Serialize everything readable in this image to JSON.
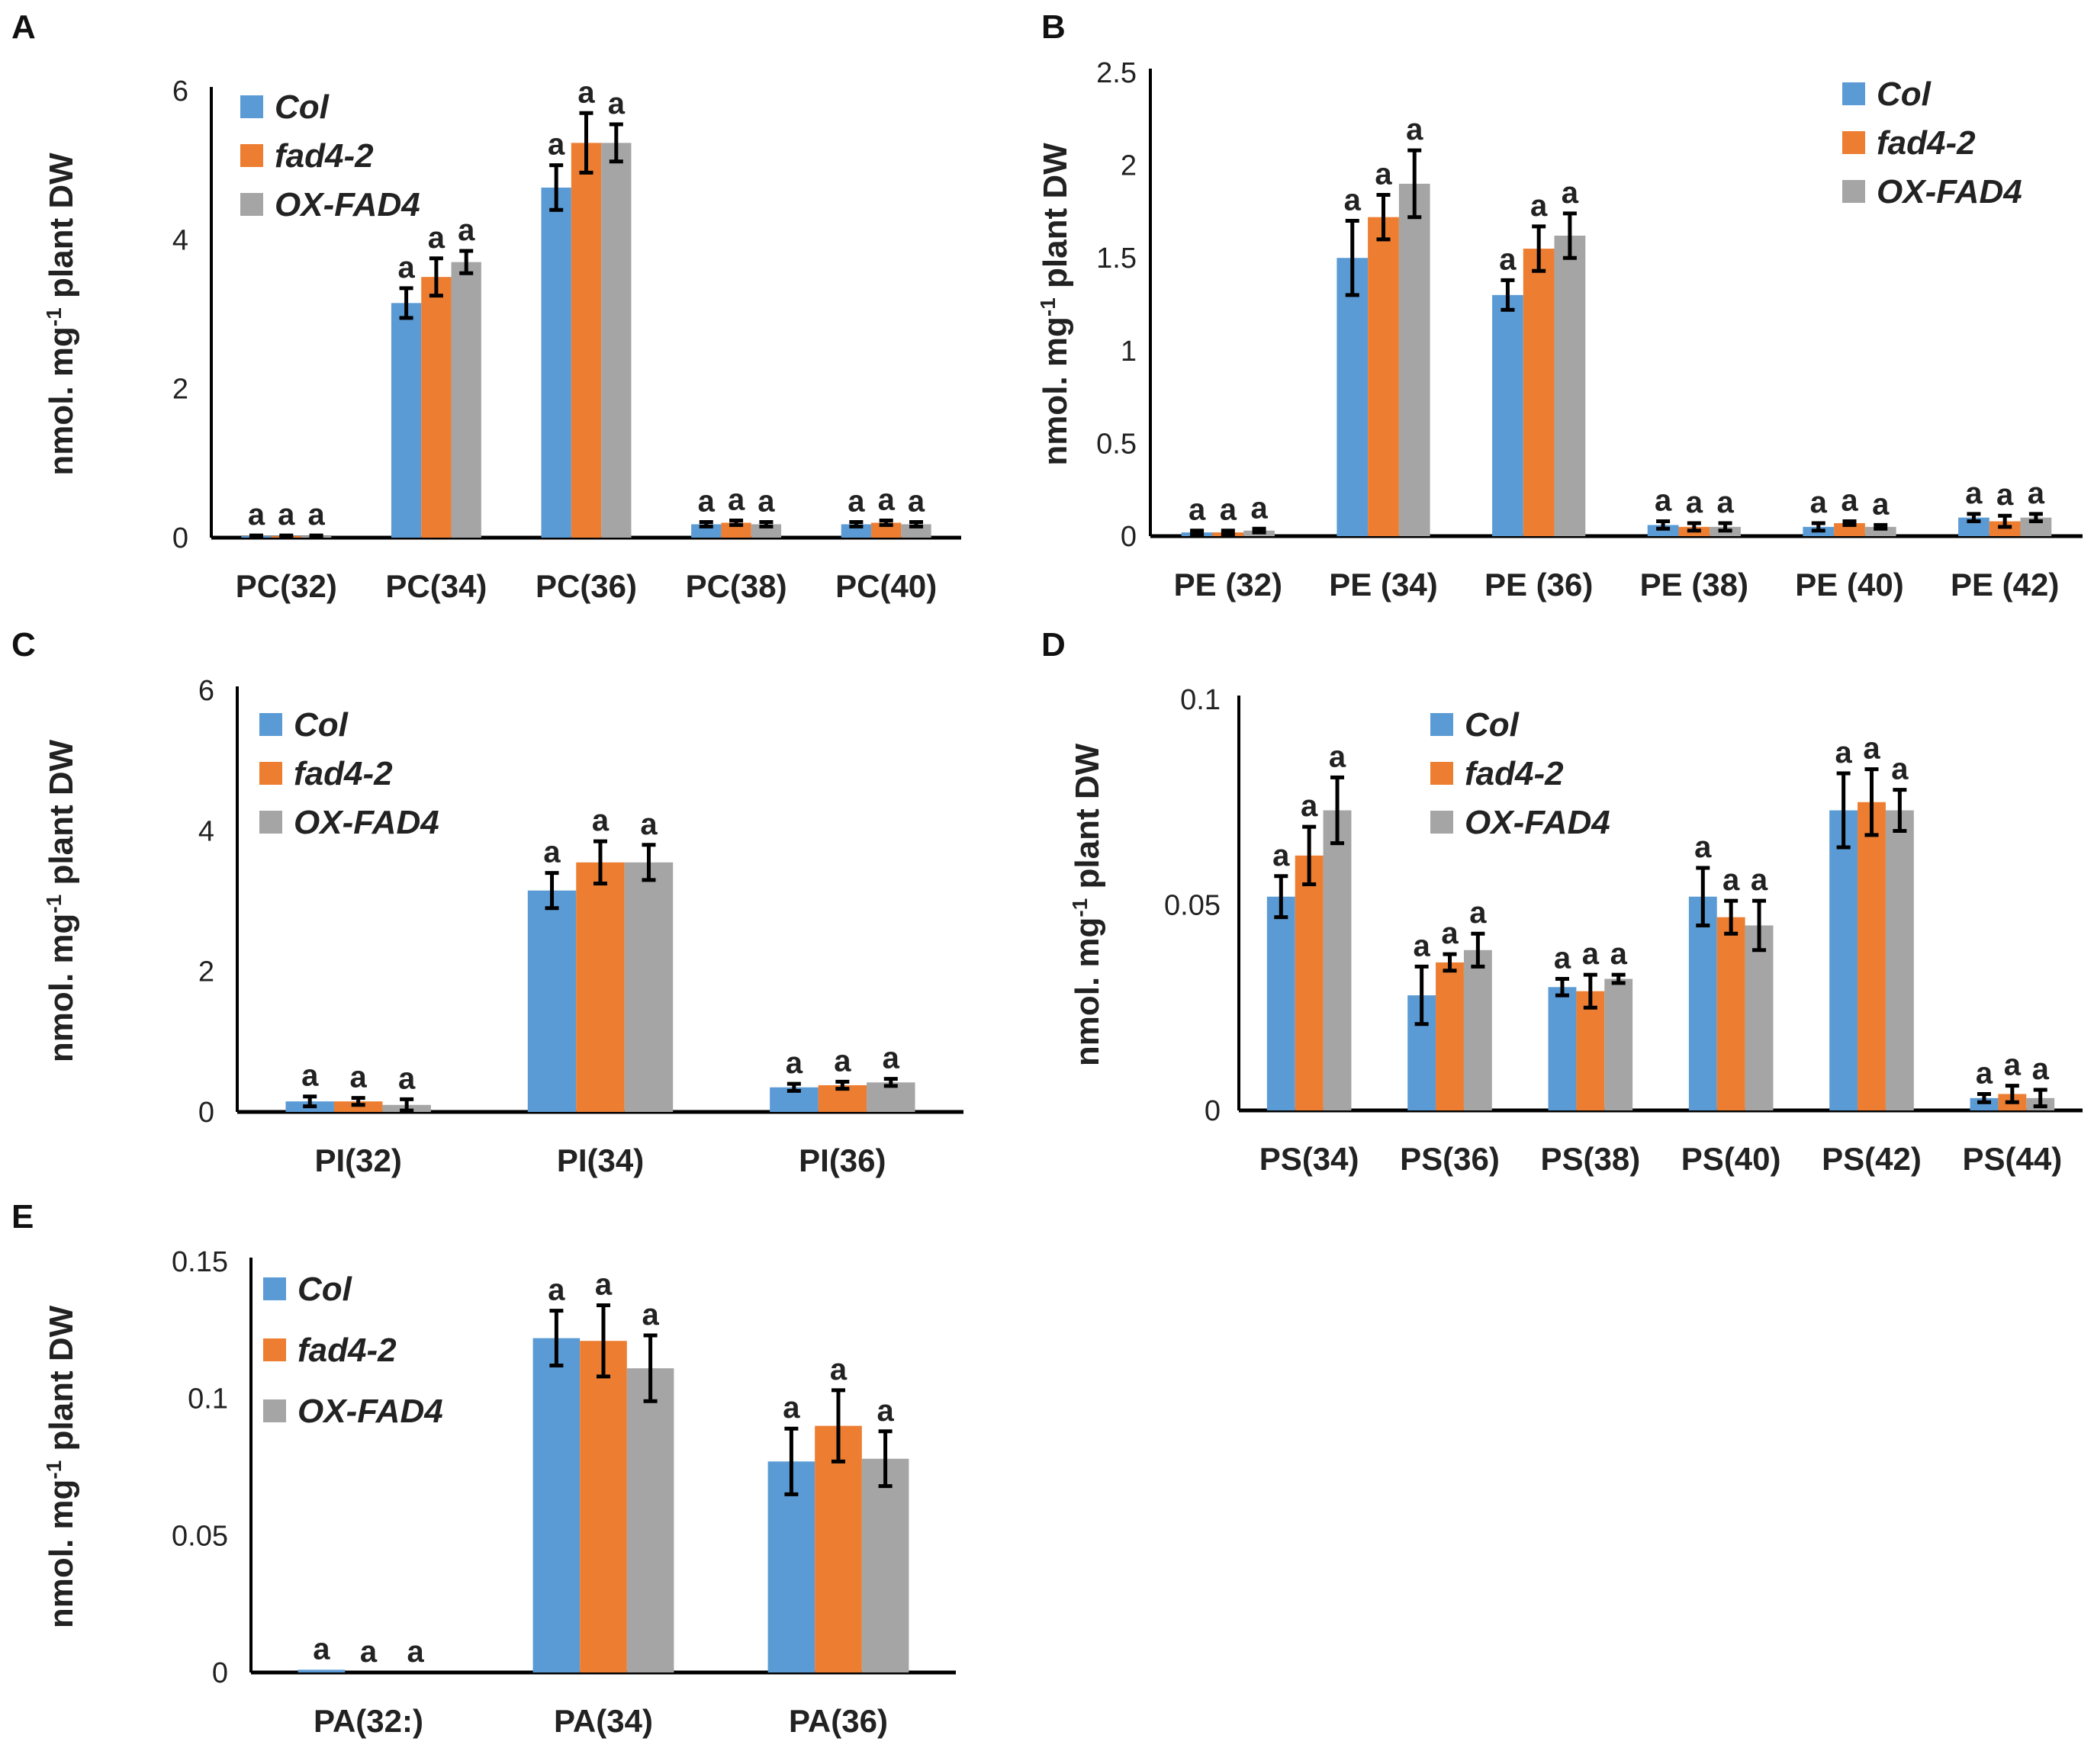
{
  "chart_data": [
    {
      "panel": "A",
      "type": "bar",
      "ylabel": "nmol. mg-1 plant DW",
      "ylim": [
        0,
        6
      ],
      "yticks": [
        0,
        2,
        4,
        6
      ],
      "categories": [
        "PC(32)",
        "PC(34)",
        "PC(36)",
        "PC(38)",
        "PC(40)"
      ],
      "series": [
        {
          "name": "Col",
          "color": "#5B9BD5",
          "values": [
            0.02,
            3.15,
            4.7,
            0.18,
            0.18
          ],
          "errors": [
            0.01,
            0.2,
            0.3,
            0.03,
            0.03
          ]
        },
        {
          "name": "fad4-2",
          "color": "#ED7D31",
          "values": [
            0.02,
            3.5,
            5.3,
            0.2,
            0.2
          ],
          "errors": [
            0.01,
            0.25,
            0.4,
            0.03,
            0.03
          ]
        },
        {
          "name": "OX-FAD4",
          "color": "#A5A5A5",
          "values": [
            0.02,
            3.7,
            5.3,
            0.18,
            0.18
          ],
          "errors": [
            0.01,
            0.15,
            0.25,
            0.03,
            0.03
          ]
        }
      ],
      "significance": "a"
    },
    {
      "panel": "B",
      "type": "bar",
      "ylabel": "nmol. mg-1 plant DW",
      "ylim": [
        0,
        2.5
      ],
      "yticks": [
        0,
        0.5,
        1,
        1.5,
        2,
        2.5
      ],
      "categories": [
        "PE (32)",
        "PE (34)",
        "PE (36)",
        "PE (38)",
        "PE (40)",
        "PE (42)"
      ],
      "series": [
        {
          "name": "Col",
          "color": "#5B9BD5",
          "values": [
            0.02,
            1.5,
            1.3,
            0.06,
            0.05,
            0.1
          ],
          "errors": [
            0.01,
            0.2,
            0.08,
            0.02,
            0.02,
            0.02
          ]
        },
        {
          "name": "fad4-2",
          "color": "#ED7D31",
          "values": [
            0.02,
            1.72,
            1.55,
            0.05,
            0.07,
            0.08
          ],
          "errors": [
            0.01,
            0.12,
            0.12,
            0.02,
            0.01,
            0.03
          ]
        },
        {
          "name": "OX-FAD4",
          "color": "#A5A5A5",
          "values": [
            0.03,
            1.9,
            1.62,
            0.05,
            0.05,
            0.1
          ],
          "errors": [
            0.01,
            0.18,
            0.12,
            0.02,
            0.01,
            0.02
          ]
        }
      ],
      "significance": "a"
    },
    {
      "panel": "C",
      "type": "bar",
      "ylabel": "nmol. mg-1 plant DW",
      "ylim": [
        0,
        6
      ],
      "yticks": [
        0,
        2,
        4,
        6
      ],
      "categories": [
        "PI(32)",
        "PI(34)",
        "PI(36)"
      ],
      "series": [
        {
          "name": "Col",
          "color": "#5B9BD5",
          "values": [
            0.15,
            3.15,
            0.35
          ],
          "errors": [
            0.07,
            0.25,
            0.05
          ]
        },
        {
          "name": "fad4-2",
          "color": "#ED7D31",
          "values": [
            0.15,
            3.55,
            0.38
          ],
          "errors": [
            0.05,
            0.3,
            0.05
          ]
        },
        {
          "name": "OX-FAD4",
          "color": "#A5A5A5",
          "values": [
            0.1,
            3.55,
            0.42
          ],
          "errors": [
            0.08,
            0.25,
            0.05
          ]
        }
      ],
      "significance": "a"
    },
    {
      "panel": "D",
      "type": "bar",
      "ylabel": "nmol. mg-1 plant DW",
      "ylim": [
        0,
        0.1
      ],
      "yticks": [
        0,
        0.05,
        0.1
      ],
      "categories": [
        "PS(34)",
        "PS(36)",
        "PS(38)",
        "PS(40)",
        "PS(42)",
        "PS(44)"
      ],
      "series": [
        {
          "name": "Col",
          "color": "#5B9BD5",
          "values": [
            0.052,
            0.028,
            0.03,
            0.052,
            0.073,
            0.003
          ],
          "errors": [
            0.005,
            0.007,
            0.002,
            0.007,
            0.009,
            0.001
          ]
        },
        {
          "name": "fad4-2",
          "color": "#ED7D31",
          "values": [
            0.062,
            0.036,
            0.029,
            0.047,
            0.075,
            0.004
          ],
          "errors": [
            0.007,
            0.002,
            0.004,
            0.004,
            0.008,
            0.002
          ]
        },
        {
          "name": "OX-FAD4",
          "color": "#A5A5A5",
          "values": [
            0.073,
            0.039,
            0.032,
            0.045,
            0.073,
            0.003
          ],
          "errors": [
            0.008,
            0.004,
            0.001,
            0.006,
            0.005,
            0.002
          ]
        }
      ],
      "significance": "a"
    },
    {
      "panel": "E",
      "type": "bar",
      "ylabel": "nmol. mg-1 plant DW",
      "ylim": [
        0,
        0.15
      ],
      "yticks": [
        0,
        0.05,
        0.1,
        0.15
      ],
      "categories": [
        "PA(32:)",
        "PA(34)",
        "PA(36)"
      ],
      "series": [
        {
          "name": "Col",
          "color": "#5B9BD5",
          "values": [
            0.001,
            0.122,
            0.077
          ],
          "errors": [
            0,
            0.01,
            0.012
          ]
        },
        {
          "name": "fad4-2",
          "color": "#ED7D31",
          "values": [
            0,
            0.121,
            0.09
          ],
          "errors": [
            0,
            0.013,
            0.013
          ]
        },
        {
          "name": "OX-FAD4",
          "color": "#A5A5A5",
          "values": [
            0,
            0.111,
            0.078
          ],
          "errors": [
            0,
            0.012,
            0.01
          ]
        }
      ],
      "significance": "a"
    }
  ]
}
